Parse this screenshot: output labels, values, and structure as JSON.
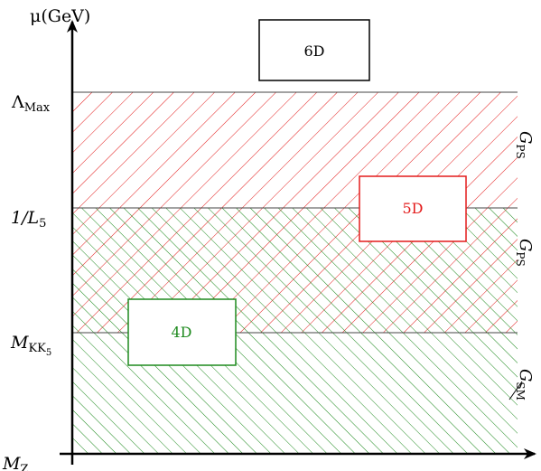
{
  "axes": {
    "y_axis_label": "μ(GeV)",
    "origin_label": "M",
    "origin_label_sub": "Z"
  },
  "scale_labels": {
    "lambda_max": {
      "main": "Λ",
      "sub": "Max"
    },
    "inv_l5": {
      "main": "1/L",
      "sub": "5"
    },
    "m_kk5": {
      "main": "M",
      "sub": "KK",
      "subsub": "5"
    }
  },
  "regions": {
    "d6": {
      "label": "6D"
    },
    "d5": {
      "label": "5D"
    },
    "d4": {
      "label": "4D"
    }
  },
  "group_labels": {
    "top": {
      "main": "G",
      "sub": "PS"
    },
    "middle": {
      "main": "G",
      "sub": "PS"
    },
    "bottom": {
      "main": "G",
      "sub": "SM",
      "struck": true
    }
  },
  "colors": {
    "axis": "#000000",
    "red_hatch": "#e31b1b",
    "green_hatch": "#1e8a1e",
    "box_6d": "#000000",
    "box_5d": "#e31b1b",
    "box_4d": "#1e8a1e"
  }
}
